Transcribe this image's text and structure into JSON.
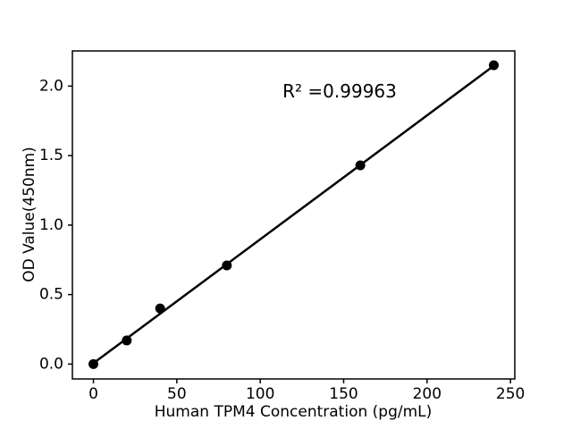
{
  "figure": {
    "background": "#ffffff",
    "text_color": "#000000"
  },
  "chart_data": {
    "type": "scatter",
    "title": "",
    "xlabel": "Human TPM4 Concentration (pg/mL)",
    "ylabel": "OD Value(450nm)",
    "annotation": {
      "text": "R² =0.99963",
      "r_squared": 0.99963
    },
    "series": [
      {
        "name": "standard-points",
        "x": [
          0,
          20,
          40,
          80,
          160,
          240
        ],
        "y": [
          0.0,
          0.17,
          0.4,
          0.71,
          1.43,
          2.15
        ],
        "marker_color": "#000000"
      }
    ],
    "fit_line": {
      "x": [
        0,
        240
      ],
      "y": [
        0.006,
        2.146
      ],
      "color": "#000000"
    },
    "xlim": [
      -12.6,
      252.6
    ],
    "ylim": [
      -0.107,
      2.253
    ],
    "xticks": [
      0,
      50,
      100,
      150,
      200,
      250
    ],
    "ytick_labels": [
      "0.0",
      "0.5",
      "1.0",
      "1.5",
      "2.0"
    ],
    "grid": false,
    "legend": false,
    "axis_color": "#000000"
  }
}
